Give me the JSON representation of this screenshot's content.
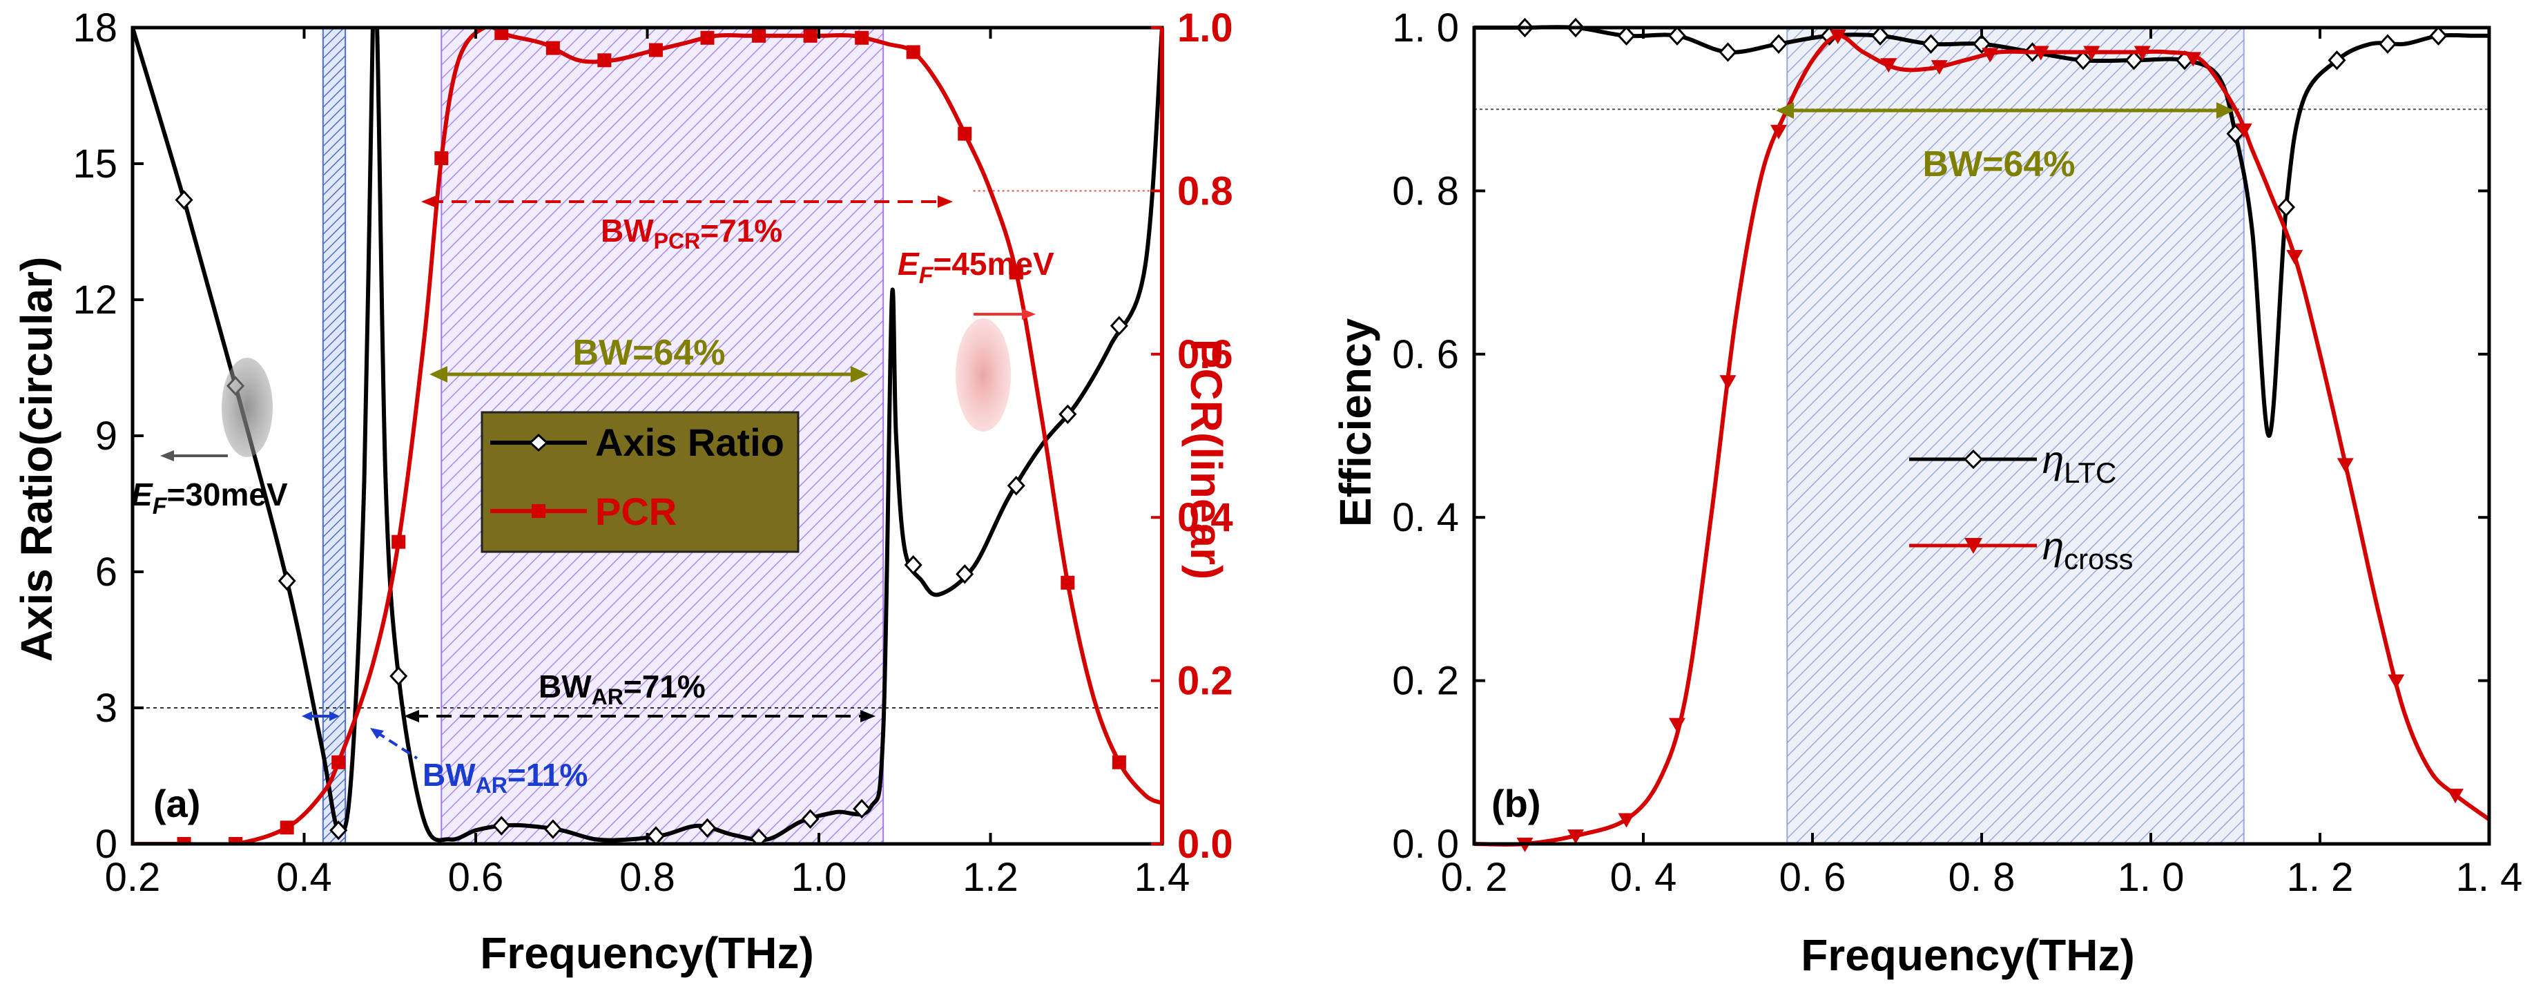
{
  "chart_data": [
    {
      "type": "line",
      "panel_label": "(a)",
      "xlabel": "Frequency(THz)",
      "ylabel_left": "Axis Ratio(circular)",
      "ylabel_right": "PCR(linear)",
      "xlim": [
        0.2,
        1.4
      ],
      "ylim_left": [
        0,
        18
      ],
      "ylim_right": [
        0,
        1.0
      ],
      "x_ticks": [
        "0.2",
        "0.4",
        "0.6",
        "0.8",
        "1.0",
        "1.2",
        "1.4"
      ],
      "y_ticks_left": [
        "0",
        "3",
        "6",
        "9",
        "12",
        "15",
        "18"
      ],
      "y_ticks_right": [
        "0.0",
        "0.2",
        "0.4",
        "0.6",
        "0.8",
        "1.0"
      ],
      "series": [
        {
          "name": "Axis Ratio",
          "axis": "left",
          "color": "#000000",
          "marker": "diamond",
          "x": [
            0.2,
            0.26,
            0.32,
            0.38,
            0.42,
            0.44,
            0.455,
            0.47,
            0.48,
            0.485,
            0.495,
            0.51,
            0.54,
            0.57,
            0.6,
            0.63,
            0.66,
            0.7,
            0.74,
            0.78,
            0.82,
            0.86,
            0.9,
            0.94,
            0.98,
            1.02,
            1.06,
            1.075,
            1.085,
            1.09,
            1.1,
            1.12,
            1.14,
            1.18,
            1.22,
            1.26,
            1.3,
            1.34,
            1.38,
            1.4
          ],
          "y": [
            18,
            14.2,
            10.1,
            5.8,
            2.2,
            0.3,
            1.5,
            8,
            18,
            18,
            8,
            3.7,
            0.5,
            0.1,
            0.3,
            0.4,
            0.4,
            0.3,
            0.1,
            0.1,
            0.2,
            0.4,
            0.2,
            0.1,
            0.5,
            0.7,
            0.8,
            2.5,
            12,
            9,
            6.5,
            5.8,
            5.5,
            6.1,
            7.6,
            8.8,
            9.7,
            11.0,
            12.7,
            18
          ],
          "marker_x": [
            0.26,
            0.32,
            0.38,
            0.44,
            0.51,
            0.63,
            0.69,
            0.81,
            0.87,
            0.93,
            0.99,
            1.05,
            1.11,
            1.17,
            1.23,
            1.29,
            1.35
          ]
        },
        {
          "name": "PCR",
          "axis": "right",
          "color": "#d40000",
          "marker": "square",
          "x": [
            0.2,
            0.26,
            0.32,
            0.38,
            0.42,
            0.44,
            0.48,
            0.51,
            0.54,
            0.56,
            0.58,
            0.61,
            0.64,
            0.68,
            0.72,
            0.76,
            0.8,
            0.84,
            0.88,
            0.92,
            0.96,
            1.0,
            1.04,
            1.08,
            1.11,
            1.14,
            1.17,
            1.2,
            1.23,
            1.26,
            1.29,
            1.32,
            1.35,
            1.38,
            1.4
          ],
          "y": [
            0.0,
            0.0,
            0.0,
            0.02,
            0.06,
            0.1,
            0.22,
            0.37,
            0.62,
            0.84,
            0.96,
            1.0,
            0.99,
            0.98,
            0.96,
            0.96,
            0.97,
            0.98,
            0.99,
            0.99,
            0.99,
            0.99,
            0.99,
            0.98,
            0.97,
            0.93,
            0.87,
            0.8,
            0.7,
            0.52,
            0.32,
            0.18,
            0.1,
            0.06,
            0.05
          ],
          "marker_x": [
            0.26,
            0.32,
            0.38,
            0.44,
            0.51,
            0.56,
            0.63,
            0.69,
            0.75,
            0.81,
            0.87,
            0.93,
            0.99,
            1.05,
            1.11,
            1.17,
            1.23,
            1.29,
            1.35
          ]
        }
      ],
      "shaded_regions": [
        {
          "x": [
            0.422,
            0.448
          ],
          "color": "#3b5fc8"
        },
        {
          "x": [
            0.56,
            1.075
          ],
          "color": "#9b6cf0"
        }
      ],
      "annotations": {
        "bw_pcr_prefix": "BW",
        "bw_pcr_sub": "PCR",
        "bw_pcr_suffix": "=71%",
        "bw_center": "BW=64%",
        "bw_ar_prefix": "BW",
        "bw_ar_sub": "AR",
        "bw_ar_suffix": "=71%",
        "bw_ar_small_prefix": "BW",
        "bw_ar_small_sub": "AR",
        "bw_ar_small_suffix": "=11%",
        "ef_left_prefix": "E",
        "ef_left_sub": "F",
        "ef_left_suffix": "=30meV",
        "ef_right_prefix": "E",
        "ef_right_sub": "F",
        "ef_right_suffix": "=45meV"
      },
      "reference_lines": {
        "ar_level": 3,
        "pcr_level": 0.8
      },
      "legend": {
        "placement": "center",
        "background": "#7a6d1d"
      }
    },
    {
      "type": "line",
      "panel_label": "(b)",
      "xlabel": "Frequency(THz)",
      "ylabel": "Efficiency",
      "xlim": [
        0.2,
        1.4
      ],
      "ylim": [
        0,
        1.0
      ],
      "x_ticks": [
        "0. 2",
        "0. 4",
        "0. 6",
        "0. 8",
        "1. 0",
        "1. 2",
        "1. 4"
      ],
      "y_ticks": [
        "0. 0",
        "0. 2",
        "0. 4",
        "0. 6",
        "0. 8",
        "1. 0"
      ],
      "series": [
        {
          "name_symbol": "η",
          "name_sub": "LTC",
          "color": "#000000",
          "marker": "diamond",
          "x": [
            0.2,
            0.26,
            0.32,
            0.38,
            0.44,
            0.5,
            0.56,
            0.62,
            0.68,
            0.74,
            0.8,
            0.86,
            0.92,
            0.98,
            1.04,
            1.08,
            1.1,
            1.12,
            1.14,
            1.16,
            1.18,
            1.22,
            1.26,
            1.3,
            1.34,
            1.38,
            1.4
          ],
          "y": [
            1.0,
            1.0,
            1.0,
            0.99,
            0.99,
            0.97,
            0.98,
            0.99,
            0.99,
            0.98,
            0.98,
            0.97,
            0.96,
            0.96,
            0.96,
            0.94,
            0.87,
            0.75,
            0.5,
            0.78,
            0.91,
            0.96,
            0.98,
            0.98,
            0.99,
            0.99,
            0.99
          ],
          "marker_x": [
            0.26,
            0.32,
            0.38,
            0.44,
            0.5,
            0.56,
            0.62,
            0.68,
            0.74,
            0.8,
            0.86,
            0.92,
            0.98,
            1.04,
            1.1,
            1.16,
            1.22,
            1.28,
            1.34
          ]
        },
        {
          "name_symbol": "η",
          "name_sub": "cross",
          "color": "#d40000",
          "marker": "triangle-down",
          "x": [
            0.2,
            0.26,
            0.32,
            0.38,
            0.42,
            0.45,
            0.48,
            0.51,
            0.54,
            0.57,
            0.6,
            0.63,
            0.66,
            0.7,
            0.74,
            0.78,
            0.82,
            0.86,
            0.9,
            0.94,
            0.98,
            1.02,
            1.06,
            1.1,
            1.12,
            1.14,
            1.17,
            1.2,
            1.24,
            1.27,
            1.3,
            1.33,
            1.36,
            1.4
          ],
          "y": [
            0.0,
            0.0,
            0.01,
            0.03,
            0.08,
            0.18,
            0.4,
            0.65,
            0.82,
            0.9,
            0.96,
            0.99,
            0.97,
            0.95,
            0.95,
            0.96,
            0.97,
            0.97,
            0.97,
            0.97,
            0.97,
            0.97,
            0.96,
            0.9,
            0.85,
            0.8,
            0.72,
            0.6,
            0.42,
            0.28,
            0.16,
            0.09,
            0.06,
            0.03
          ],
          "marker_x": [
            0.26,
            0.32,
            0.38,
            0.44,
            0.5,
            0.56,
            0.63,
            0.69,
            0.75,
            0.81,
            0.87,
            0.93,
            0.99,
            1.05,
            1.11,
            1.17,
            1.23,
            1.29,
            1.36
          ]
        }
      ],
      "shaded_regions": [
        {
          "x": [
            0.57,
            1.11
          ],
          "color": "#9aa8dc"
        }
      ],
      "annotations": {
        "bw": "BW=64%"
      },
      "reference_lines": {
        "eff_level": 0.9
      },
      "legend": {
        "placement": "center-left"
      }
    }
  ]
}
